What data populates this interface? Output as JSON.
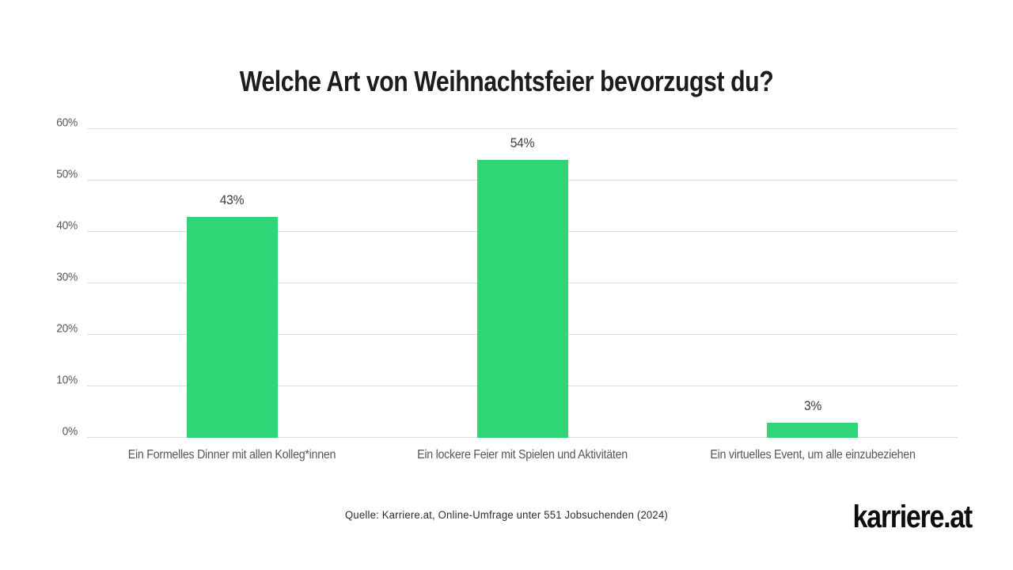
{
  "chart_data": {
    "type": "bar",
    "title": "Welche Art von Weihnachtsfeier bevorzugst du?",
    "categories": [
      "Ein Formelles Dinner mit allen Kolleg*innen",
      "Ein lockere Feier mit Spielen und Aktivitäten",
      "Ein virtuelles Event, um alle einzubeziehen"
    ],
    "values": [
      43,
      54,
      3
    ],
    "value_labels": [
      "43%",
      "54%",
      "3%"
    ],
    "xlabel": "",
    "ylabel": "",
    "ylim": [
      0,
      60
    ],
    "yticks": [
      0,
      10,
      20,
      30,
      40,
      50,
      60
    ],
    "ytick_labels": [
      "0%",
      "10%",
      "20%",
      "30%",
      "40%",
      "50%",
      "60%"
    ],
    "grid": true,
    "legend": false,
    "bar_color": "#30d575",
    "gridline_color": "#dcdcdc"
  },
  "footer": {
    "source": "Quelle: Karriere.at, Online-Umfrage unter 551 Jobsuchenden (2024)",
    "logo": "karriere.at"
  }
}
